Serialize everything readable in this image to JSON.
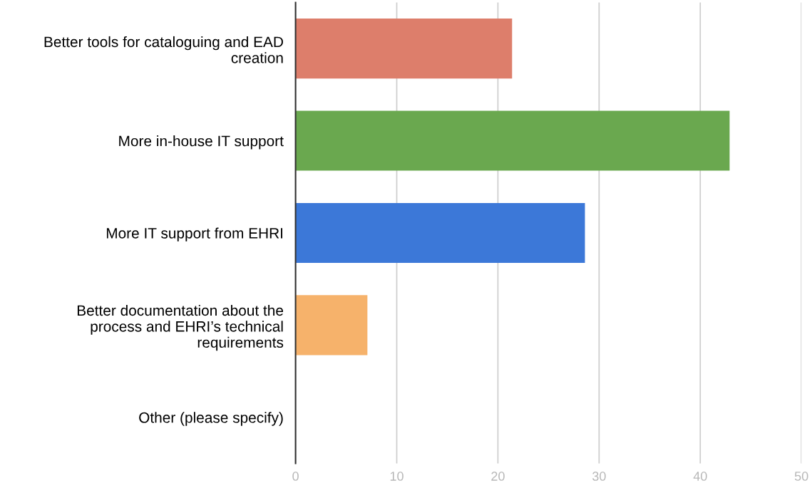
{
  "chart_data": {
    "type": "bar",
    "orientation": "horizontal",
    "categories": [
      "Better tools for cataloguing and EAD\ncreation",
      "More in-house IT support",
      "More IT support from EHRI",
      "Better documentation about the\nprocess and EHRI’s technical\nrequirements",
      "Other (please specify)"
    ],
    "values": [
      21.4,
      42.9,
      28.6,
      7.1,
      0
    ],
    "colors": [
      "#dd7e6b",
      "#6aa84f",
      "#3c78d8",
      "#f6b26b",
      "#cccccc"
    ],
    "xlim": [
      0,
      50
    ],
    "xticks": [
      0,
      10,
      20,
      30,
      40,
      50
    ],
    "grid": "x",
    "legend": false
  }
}
